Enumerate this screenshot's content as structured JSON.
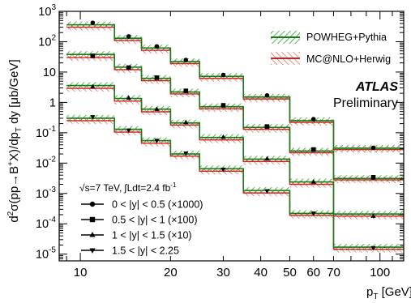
{
  "chart_data": {
    "type": "step",
    "x_scale": "log",
    "y_scale": "log",
    "xlim": [
      8.5,
      120
    ],
    "ylim": [
      6e-06,
      1000
    ],
    "x_tick_labels": [
      "10",
      "20",
      "30",
      "40",
      "50",
      "60",
      "70",
      "100"
    ],
    "x_tick_values": [
      10,
      20,
      30,
      40,
      50,
      60,
      70,
      100
    ],
    "y_tick_values": [
      1e-05,
      0.0001,
      0.001,
      0.01,
      0.1,
      1,
      10,
      100,
      1000
    ],
    "y_tick_labels": [
      {
        "base": "10",
        "exp": "-5"
      },
      {
        "base": "10",
        "exp": "-4"
      },
      {
        "base": "10",
        "exp": "-3"
      },
      {
        "base": "10",
        "exp": "-2"
      },
      {
        "base": "10",
        "exp": "-1"
      },
      {
        "base": "1",
        "exp": ""
      },
      {
        "base": "10",
        "exp": ""
      },
      {
        "base": "10",
        "exp": "2"
      },
      {
        "base": "10",
        "exp": "3"
      }
    ],
    "ylabel": "d²σ(pp→B⁺X)/dp_T dy [μb/GeV]",
    "xlabel": "p_T [GeV]",
    "bin_edges": [
      9,
      13,
      16,
      20,
      25,
      35,
      50,
      70,
      120
    ],
    "bin_centers": [
      11,
      14.5,
      18,
      22.5,
      30,
      42,
      60,
      95
    ],
    "series": [
      {
        "name": "0 < |y| < 0.5 (×1000)",
        "marker": "circle",
        "data": [
          420,
          150,
          70,
          25,
          8,
          1.7,
          0.28,
          0.032
        ],
        "powheg": [
          360,
          130,
          62,
          22,
          7.2,
          1.5,
          0.25,
          0.031
        ],
        "mcnlo": [
          300,
          110,
          52,
          19,
          6.2,
          1.3,
          0.22,
          0.028
        ]
      },
      {
        "name": "0.5 < |y| < 1 (×100)",
        "marker": "square",
        "data": [
          34,
          14,
          6.5,
          2.4,
          0.8,
          0.16,
          0.028,
          0.0034
        ],
        "powheg": [
          38,
          14.5,
          6.2,
          2.2,
          0.72,
          0.15,
          0.025,
          0.0031
        ],
        "mcnlo": [
          30,
          12,
          5.2,
          1.9,
          0.62,
          0.13,
          0.022,
          0.0028
        ]
      },
      {
        "name": "1 < |y| < 1.5 (×10)",
        "marker": "triangle-up",
        "data": [
          3.3,
          1.4,
          0.6,
          0.22,
          0.072,
          0.014,
          0.0024,
          0.00018
        ],
        "powheg": [
          3.6,
          1.35,
          0.6,
          0.21,
          0.07,
          0.0135,
          0.0024,
          0.00021
        ],
        "mcnlo": [
          2.9,
          1.1,
          0.49,
          0.18,
          0.058,
          0.0113,
          0.002,
          0.00018
        ]
      },
      {
        "name": "1.5 < |y| < 2.25",
        "marker": "triangle-down",
        "data": [
          0.33,
          0.12,
          0.055,
          0.021,
          0.0062,
          0.0012,
          0.00022,
          1.6e-05
        ],
        "powheg": [
          0.3,
          0.13,
          0.055,
          0.02,
          0.0065,
          0.00125,
          0.00022,
          1.7e-05
        ],
        "mcnlo": [
          0.25,
          0.105,
          0.045,
          0.017,
          0.0054,
          0.00104,
          0.00019,
          1.45e-05
        ]
      }
    ],
    "band_relative_width": 0.28,
    "legend": {
      "position": "top-right",
      "powheg": {
        "label": "POWHEG+Pythia",
        "color": "#1a7a1a",
        "hatch": "#27a327"
      },
      "mcnlo": {
        "label": "MC@NLO+Herwig",
        "color": "#d42020",
        "hatch": "#e84040"
      }
    },
    "atlas_label": "ATLAS",
    "atlas_sublabel": "Preliminary",
    "lumi_label": {
      "sqrt_s": "√s=7 TeV,",
      "integral": "∫Ldt=2.4 fb",
      "exp": "-1"
    }
  }
}
